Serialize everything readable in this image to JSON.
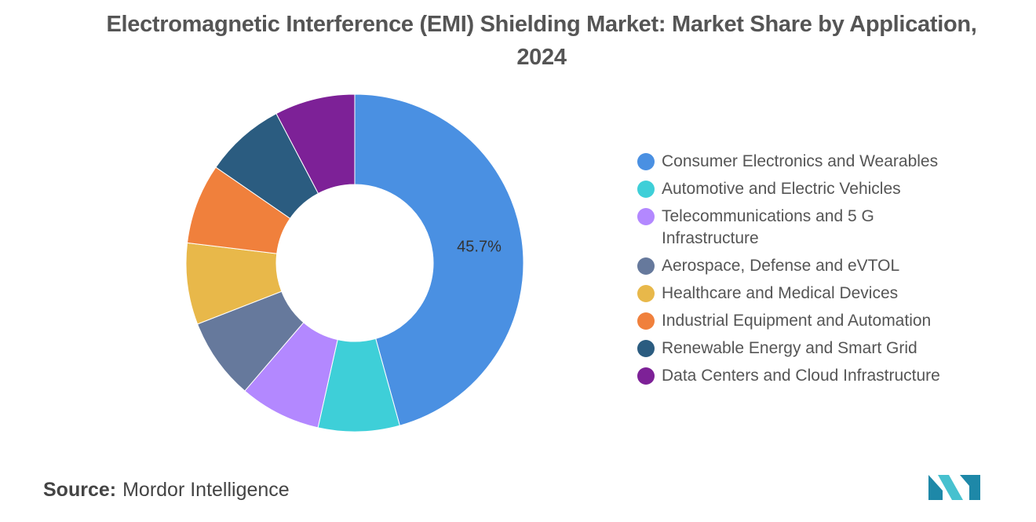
{
  "title": "Electromagnetic Interference (EMI) Shielding Market: Market Share by Application, 2024",
  "chart_data": {
    "type": "pie",
    "variant": "donut",
    "title": "Electromagnetic Interference (EMI) Shielding Market: Market Share by Application, 2024",
    "start": "12 o'clock, clockwise",
    "categories": [
      "Consumer Electronics and Wearables",
      "Automotive and Electric Vehicles",
      "Telecommunications and 5 G Infrastructure",
      "Aerospace, Defense and eVTOL",
      "Healthcare and Medical Devices",
      "Industrial Equipment and Automation",
      "Renewable Energy and Smart Grid",
      "Data Centers and Cloud Infrastructure"
    ],
    "values": [
      45.7,
      7.8,
      7.8,
      7.8,
      7.8,
      7.7,
      7.7,
      7.7
    ],
    "colors": [
      "#4A90E2",
      "#3ECFD8",
      "#B388FF",
      "#66799C",
      "#E8B84A",
      "#F0803C",
      "#2B5C80",
      "#7D2197"
    ],
    "data_labels": [
      "45.7%",
      "",
      "",
      "",
      "",
      "",
      "",
      ""
    ],
    "legend_position": "right"
  },
  "source": {
    "label": "Source:",
    "text": "Mordor Intelligence"
  },
  "logo": {
    "icon": "mordor-intelligence-logo",
    "colors": [
      "#1E88A8",
      "#47C1CF"
    ]
  }
}
